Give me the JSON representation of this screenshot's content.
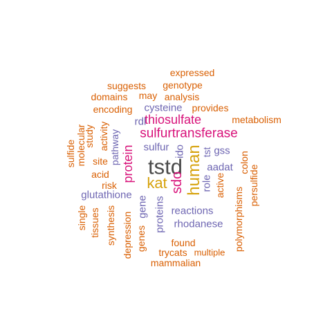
{
  "palette": {
    "dark": "#4a4a4a",
    "gold": "#d6a20c",
    "pink": "#d8127a",
    "purple": "#6e66b2",
    "orange": "#d95f02"
  },
  "words": [
    {
      "text": "tstd",
      "color": "dark"
    },
    {
      "text": "kat",
      "color": "gold"
    },
    {
      "text": "human",
      "color": "gold"
    },
    {
      "text": "sulfurtransferase",
      "color": "pink"
    },
    {
      "text": "thiosulfate",
      "color": "pink"
    },
    {
      "text": "protein",
      "color": "pink"
    },
    {
      "text": "sdo",
      "color": "pink"
    },
    {
      "text": "cysteine",
      "color": "purple"
    },
    {
      "text": "rdl",
      "color": "purple"
    },
    {
      "text": "sulfur",
      "color": "purple"
    },
    {
      "text": "ido",
      "color": "purple"
    },
    {
      "text": "gss",
      "color": "purple"
    },
    {
      "text": "tst",
      "color": "purple"
    },
    {
      "text": "aadat",
      "color": "purple"
    },
    {
      "text": "role",
      "color": "purple"
    },
    {
      "text": "glutathione",
      "color": "purple"
    },
    {
      "text": "pathway",
      "color": "purple"
    },
    {
      "text": "gene",
      "color": "purple"
    },
    {
      "text": "proteins",
      "color": "purple"
    },
    {
      "text": "reactions",
      "color": "purple"
    },
    {
      "text": "rhodanese",
      "color": "purple"
    },
    {
      "text": "expressed",
      "color": "orange"
    },
    {
      "text": "genotype",
      "color": "orange"
    },
    {
      "text": "suggests",
      "color": "orange"
    },
    {
      "text": "may",
      "color": "orange"
    },
    {
      "text": "analysis",
      "color": "orange"
    },
    {
      "text": "domains",
      "color": "orange"
    },
    {
      "text": "encoding",
      "color": "orange"
    },
    {
      "text": "provides",
      "color": "orange"
    },
    {
      "text": "metabolism",
      "color": "orange"
    },
    {
      "text": "study",
      "color": "orange"
    },
    {
      "text": "activity",
      "color": "orange"
    },
    {
      "text": "molecular",
      "color": "orange"
    },
    {
      "text": "sulfide",
      "color": "orange"
    },
    {
      "text": "site",
      "color": "orange"
    },
    {
      "text": "acid",
      "color": "orange"
    },
    {
      "text": "risk",
      "color": "orange"
    },
    {
      "text": "colon",
      "color": "orange"
    },
    {
      "text": "persulfide",
      "color": "orange"
    },
    {
      "text": "active",
      "color": "orange"
    },
    {
      "text": "polymorphisms",
      "color": "orange"
    },
    {
      "text": "single",
      "color": "orange"
    },
    {
      "text": "tissues",
      "color": "orange"
    },
    {
      "text": "synthesis",
      "color": "orange"
    },
    {
      "text": "depression",
      "color": "orange"
    },
    {
      "text": "genes",
      "color": "orange"
    },
    {
      "text": "found",
      "color": "orange"
    },
    {
      "text": "trycats",
      "color": "orange"
    },
    {
      "text": "multiple",
      "color": "orange"
    },
    {
      "text": "mammalian",
      "color": "orange"
    }
  ]
}
